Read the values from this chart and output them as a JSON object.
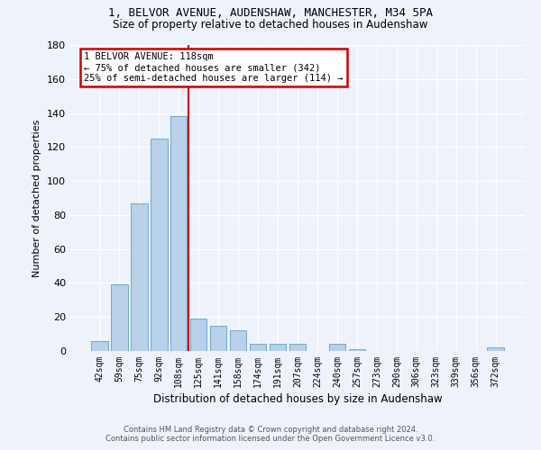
{
  "title_line1": "1, BELVOR AVENUE, AUDENSHAW, MANCHESTER, M34 5PA",
  "title_line2": "Size of property relative to detached houses in Audenshaw",
  "xlabel": "Distribution of detached houses by size in Audenshaw",
  "ylabel": "Number of detached properties",
  "footnote_line1": "Contains HM Land Registry data © Crown copyright and database right 2024.",
  "footnote_line2": "Contains public sector information licensed under the Open Government Licence v3.0.",
  "bar_labels": [
    "42sqm",
    "59sqm",
    "75sqm",
    "92sqm",
    "108sqm",
    "125sqm",
    "141sqm",
    "158sqm",
    "174sqm",
    "191sqm",
    "207sqm",
    "224sqm",
    "240sqm",
    "257sqm",
    "273sqm",
    "290sqm",
    "306sqm",
    "323sqm",
    "339sqm",
    "356sqm",
    "372sqm"
  ],
  "bar_values": [
    6,
    39,
    87,
    125,
    138,
    19,
    15,
    12,
    4,
    4,
    4,
    0,
    4,
    1,
    0,
    0,
    0,
    0,
    0,
    0,
    2
  ],
  "bar_color": "#b8d0e8",
  "bar_edge_color": "#6fa8d0",
  "background_color": "#eef2fb",
  "grid_color": "#ffffff",
  "annotation_line1": "1 BELVOR AVENUE: 118sqm",
  "annotation_line2": "← 75% of detached houses are smaller (342)",
  "annotation_line3": "25% of semi-detached houses are larger (114) →",
  "vline_x": 4.5,
  "vline_color": "#cc0000",
  "annotation_box_edgecolor": "#cc0000",
  "ylim": [
    0,
    180
  ],
  "yticks": [
    0,
    20,
    40,
    60,
    80,
    100,
    120,
    140,
    160,
    180
  ]
}
